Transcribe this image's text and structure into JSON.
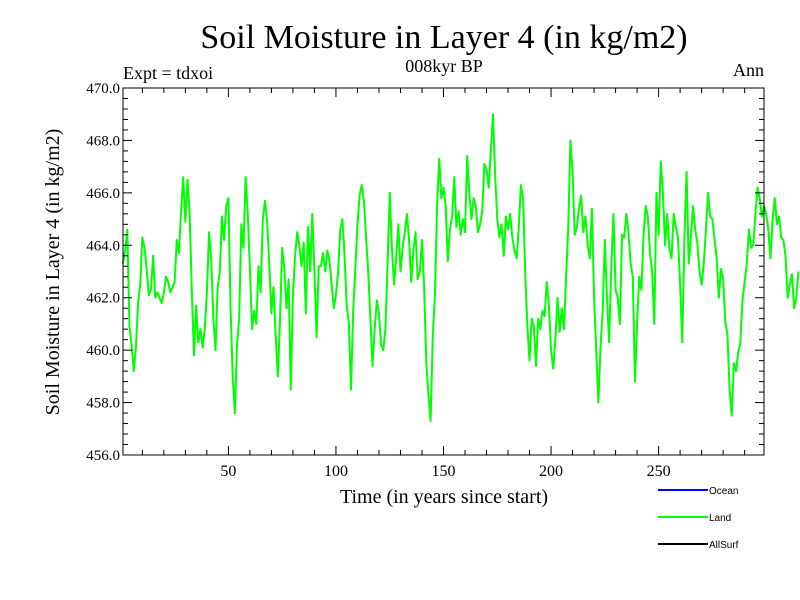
{
  "chart_data": {
    "type": "line",
    "title": "Soil Moisture in Layer 4 (in kg/m2)",
    "subtitle": "008kyr BP",
    "top_left_label": "Expt = tdxoi",
    "top_right_label": "Ann",
    "xlabel": "Time (in years since start)",
    "ylabel": "Soil Moisture in Layer 4 (in kg/m2)",
    "xlim": [
      1,
      299
    ],
    "ylim": [
      456.0,
      470.0
    ],
    "x_ticks": [
      50,
      100,
      150,
      200,
      250
    ],
    "x_tick_labels": [
      "50",
      "100",
      "150",
      "200",
      "250"
    ],
    "y_ticks": [
      456,
      458,
      460,
      462,
      464,
      466,
      468,
      470
    ],
    "y_tick_labels": [
      "456.0",
      "458.0",
      "460.0",
      "462.0",
      "464.0",
      "466.0",
      "468.0",
      "470.0"
    ],
    "legend": [
      {
        "name": "Ocean",
        "color": "#0000ff"
      },
      {
        "name": "Land",
        "color": "#00ff00"
      },
      {
        "name": "AllSurf",
        "color": "#000000"
      }
    ],
    "series": [
      {
        "name": "Land",
        "color": "#00ff00",
        "x_start": 1,
        "x_step": 1,
        "values": [
          463.3,
          463.8,
          464.6,
          460.9,
          460.2,
          459.2,
          460.1,
          461.8,
          462.5,
          464.3,
          463.9,
          463.1,
          462.1,
          462.3,
          463.6,
          462.0,
          462.2,
          462.0,
          461.8,
          462.2,
          462.8,
          462.6,
          462.2,
          462.4,
          462.6,
          464.2,
          463.7,
          465.3,
          466.6,
          464.9,
          466.5,
          465.2,
          462.2,
          459.8,
          461.7,
          460.3,
          460.8,
          460.1,
          460.8,
          462.2,
          464.5,
          463.5,
          461.2,
          460.0,
          462.4,
          463.0,
          465.1,
          464.2,
          465.5,
          465.8,
          461.6,
          459.0,
          457.6,
          460.2,
          461.2,
          464.8,
          463.9,
          466.6,
          465.2,
          463.1,
          460.8,
          461.5,
          461.0,
          463.2,
          462.2,
          465.0,
          465.7,
          464.9,
          463.3,
          461.4,
          462.4,
          460.5,
          459.0,
          461.2,
          463.9,
          463.1,
          461.6,
          462.7,
          458.5,
          462.1,
          463.6,
          464.5,
          464.0,
          463.2,
          464.1,
          461.4,
          464.7,
          463.0,
          465.2,
          463.0,
          460.5,
          463.2,
          463.2,
          463.7,
          463.0,
          463.8,
          463.4,
          462.5,
          461.6,
          462.1,
          463.0,
          464.6,
          465.0,
          463.6,
          461.7,
          461.0,
          458.5,
          461.5,
          463.1,
          464.8,
          465.9,
          466.3,
          465.7,
          464.3,
          463.0,
          461.2,
          459.4,
          460.8,
          461.9,
          461.4,
          460.2,
          460.0,
          460.8,
          463.3,
          466.0,
          463.9,
          462.5,
          463.5,
          464.8,
          463.0,
          463.9,
          464.5,
          465.2,
          464.2,
          462.6,
          463.8,
          464.5,
          462.7,
          463.0,
          464.2,
          462.4,
          459.5,
          458.3,
          457.3,
          460.5,
          462.1,
          465.5,
          467.3,
          465.8,
          466.2,
          465.5,
          463.4,
          464.6,
          465.1,
          466.6,
          464.7,
          465.3,
          464.4,
          465.0,
          464.5,
          467.4,
          466.0,
          465.0,
          465.8,
          465.5,
          464.5,
          464.8,
          465.3,
          467.1,
          466.9,
          466.2,
          467.6,
          469.0,
          466.7,
          465.0,
          464.3,
          464.8,
          463.6,
          465.1,
          464.6,
          465.2,
          464.3,
          463.8,
          463.5,
          464.7,
          466.3,
          465.8,
          462.9,
          460.9,
          459.6,
          461.2,
          460.9,
          459.4,
          461.2,
          460.8,
          461.5,
          461.3,
          462.6,
          461.7,
          460.0,
          459.3,
          460.4,
          462.0,
          460.7,
          461.6,
          460.8,
          462.8,
          464.7,
          468.0,
          466.8,
          464.4,
          464.7,
          465.4,
          465.9,
          464.5,
          465.1,
          464.0,
          463.5,
          465.4,
          462.0,
          460.0,
          458.0,
          460.1,
          461.5,
          464.2,
          462.0,
          460.3,
          463.2,
          465.2,
          462.3,
          462.0,
          461.0,
          464.4,
          464.3,
          465.2,
          464.5,
          463.3,
          462.8,
          458.8,
          461.0,
          462.8,
          462.3,
          464.4,
          465.5,
          465.1,
          463.7,
          463.0,
          461.0,
          466.0,
          464.4,
          467.2,
          466.0,
          464.0,
          465.2,
          463.9,
          463.5,
          465.2,
          464.7,
          464.3,
          462.5,
          460.3,
          464.3,
          466.8,
          463.3,
          464.3,
          465.5,
          464.6,
          464.1,
          463.0,
          462.5,
          463.3,
          464.6,
          466.0,
          465.1,
          465.0,
          464.2,
          463.5,
          462.0,
          463.1,
          462.7,
          461.1,
          460.6,
          458.5,
          457.5,
          459.5,
          459.2,
          459.9,
          460.3,
          461.9,
          462.6,
          463.3,
          464.6,
          463.9,
          464.0,
          465.2,
          466.2,
          465.8,
          465.1,
          465.5,
          465.2,
          464.6,
          463.5,
          465.0,
          465.8,
          464.8,
          465.1,
          464.3,
          464.2,
          463.6,
          462.0,
          462.5,
          462.9,
          461.6,
          462.0,
          463.0
        ]
      }
    ]
  }
}
